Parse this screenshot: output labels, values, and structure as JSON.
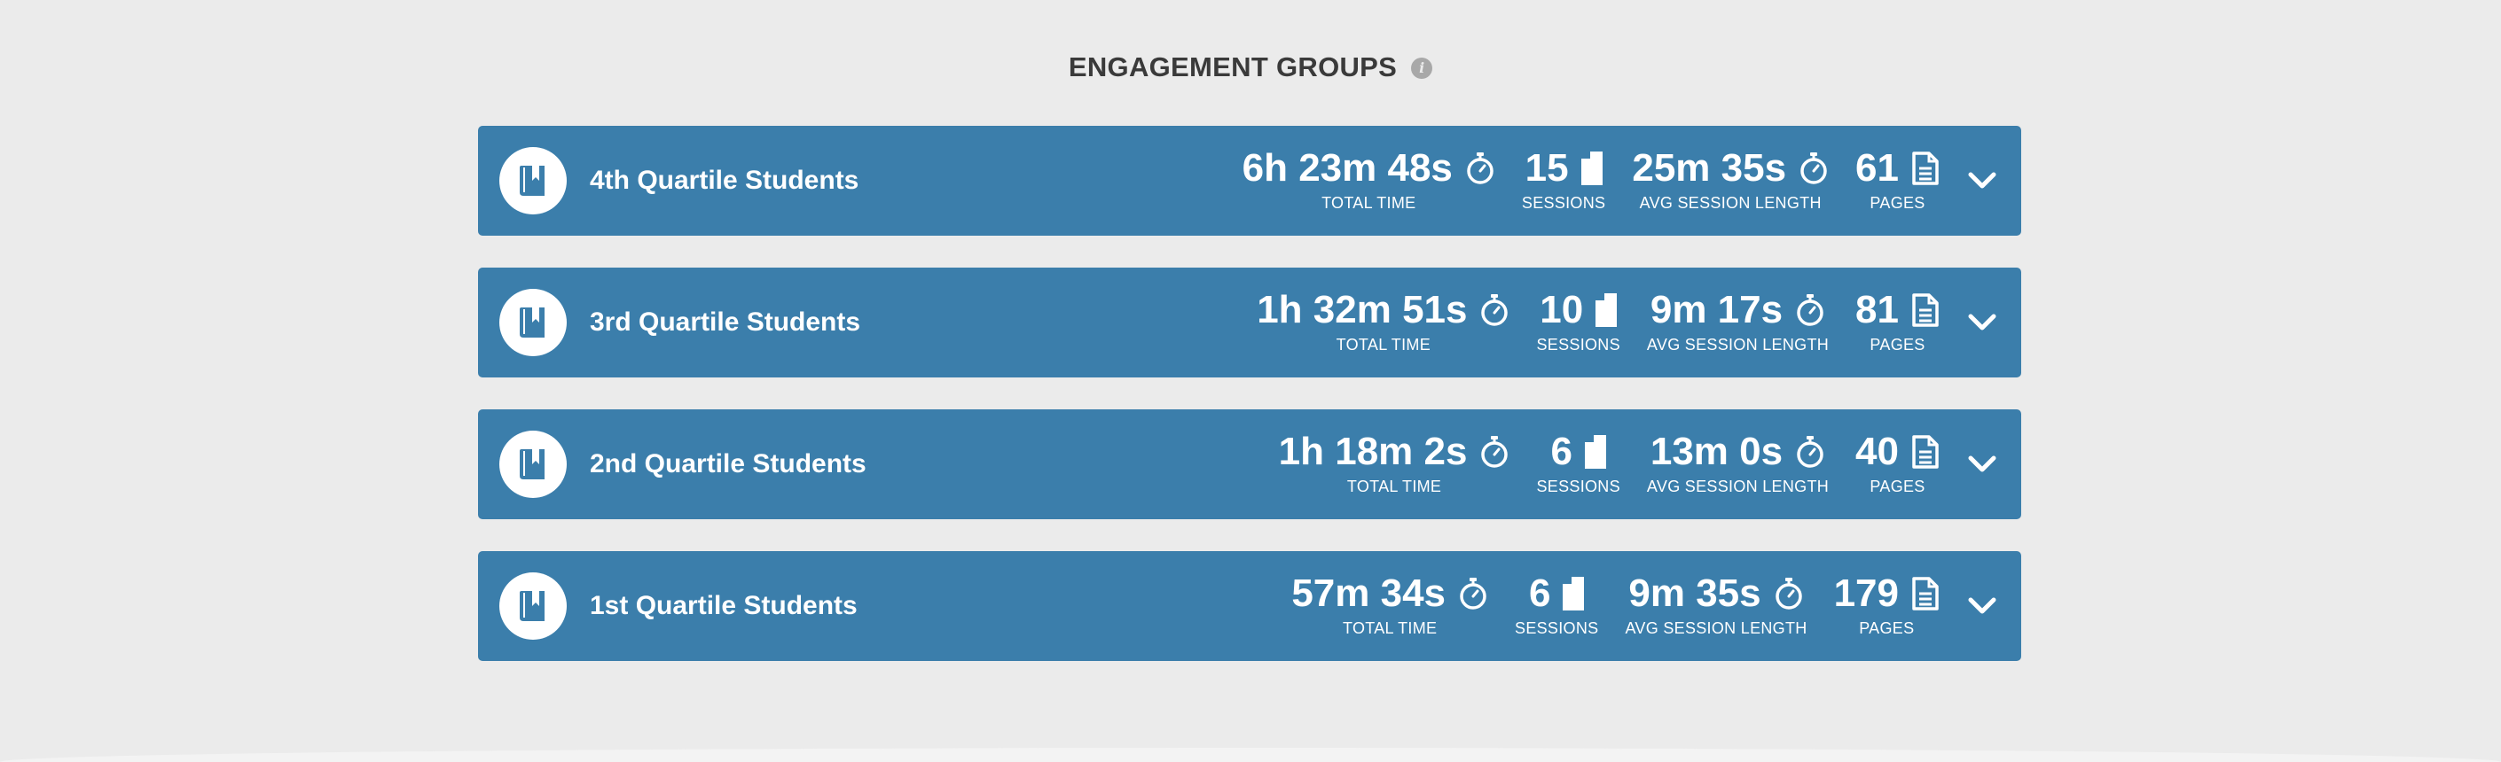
{
  "header": {
    "title": "ENGAGEMENT GROUPS",
    "info_glyph": "i"
  },
  "colors": {
    "background": "#ebebeb",
    "row_background": "#3b7eab",
    "text_on_row": "#ffffff",
    "header_text": "#3a3a3a"
  },
  "icons": {
    "group": "book-icon",
    "total_time": "stopwatch-icon",
    "sessions": "bookmark-tab-icon",
    "avg_session": "stopwatch-icon",
    "pages": "document-icon",
    "expand": "chevron-down-icon",
    "info": "info-icon"
  },
  "groups": [
    {
      "name": "4th Quartile Students",
      "total_time": "6h 23m 48s",
      "total_time_label": "TOTAL TIME",
      "sessions": "15",
      "sessions_label": "SESSIONS",
      "avg_session": "25m 35s",
      "avg_session_label": "AVG SESSION LENGTH",
      "pages": "61",
      "pages_label": "PAGES"
    },
    {
      "name": "3rd Quartile Students",
      "total_time": "1h 32m 51s",
      "total_time_label": "TOTAL TIME",
      "sessions": "10",
      "sessions_label": "SESSIONS",
      "avg_session": "9m 17s",
      "avg_session_label": "AVG SESSION LENGTH",
      "pages": "81",
      "pages_label": "PAGES"
    },
    {
      "name": "2nd Quartile Students",
      "total_time": "1h 18m 2s",
      "total_time_label": "TOTAL TIME",
      "sessions": "6",
      "sessions_label": "SESSIONS",
      "avg_session": "13m 0s",
      "avg_session_label": "AVG SESSION LENGTH",
      "pages": "40",
      "pages_label": "PAGES"
    },
    {
      "name": "1st Quartile Students",
      "total_time": "57m 34s",
      "total_time_label": "TOTAL TIME",
      "sessions": "6",
      "sessions_label": "SESSIONS",
      "avg_session": "9m 35s",
      "avg_session_label": "AVG SESSION LENGTH",
      "pages": "179",
      "pages_label": "PAGES"
    }
  ]
}
